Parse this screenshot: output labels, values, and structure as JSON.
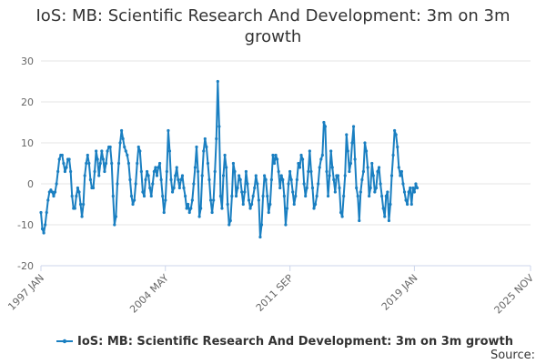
{
  "chart_data": {
    "type": "line",
    "title": "IoS: MB: Scientific Research And Development: 3m on 3m growth",
    "xlabel": "",
    "ylabel": "",
    "ylim": [
      -20,
      30
    ],
    "yticks": [
      30,
      20,
      10,
      0,
      -10,
      -20
    ],
    "xlim": [
      1997.0,
      2025.84
    ],
    "xticks": [
      {
        "label": "1997 JAN",
        "value": 1997.0
      },
      {
        "label": "2004 MAY",
        "value": 2004.33
      },
      {
        "label": "2011 SEP",
        "value": 2011.67
      },
      {
        "label": "2019 JAN",
        "value": 2019.0
      },
      {
        "label": "2025 NOV",
        "value": 2025.84
      }
    ],
    "grid": true,
    "legend": "bottom-center",
    "color": "#1a7fc1",
    "series": [
      {
        "name": "IoS: MB: Scientific Research And Development: 3m on 3m growth",
        "x_start": 1997.0,
        "step": 0.08333,
        "values": [
          -7,
          -11,
          -12,
          -10,
          -7,
          -4,
          -2,
          -1.5,
          -2,
          -3,
          -2,
          0,
          3,
          6,
          7,
          7,
          5,
          3,
          4,
          6,
          6,
          3,
          -3,
          -6,
          -6,
          -3,
          -1,
          -2,
          -5,
          -8,
          -5,
          2,
          5,
          7,
          5,
          1,
          -1,
          -1,
          3,
          8,
          6,
          2,
          5,
          8,
          6,
          3,
          5,
          8,
          9,
          9,
          5,
          -3,
          -10,
          -8,
          0,
          5,
          10,
          13,
          11,
          9,
          8,
          7,
          5,
          1,
          -3,
          -5,
          -4,
          0,
          5,
          9,
          8,
          3,
          -2,
          -3,
          1,
          3,
          2,
          -1,
          -3,
          0,
          3,
          4,
          2,
          4,
          5,
          1,
          -3,
          -7,
          -4,
          3,
          13,
          8,
          1,
          -2,
          -1,
          2,
          4,
          1,
          -1,
          1,
          2,
          -1,
          -3,
          -6,
          -5,
          -7,
          -6,
          -4,
          0,
          4,
          9,
          3,
          -8,
          -6,
          2,
          8,
          11,
          9,
          5,
          1,
          -4,
          -7,
          -4,
          3,
          11,
          25,
          14,
          -3,
          -6,
          2,
          7,
          4,
          -5,
          -10,
          -9,
          -3,
          5,
          3,
          -3,
          -1,
          2,
          1,
          -2,
          -5,
          -2,
          3,
          0,
          -4,
          -6,
          -5,
          -3,
          -1,
          2,
          0,
          -4,
          -13,
          -10,
          -3,
          2,
          1,
          -3,
          -7,
          -5,
          1,
          7,
          5,
          7,
          6,
          3,
          -1,
          2,
          1,
          -3,
          -10,
          -6,
          0,
          3,
          1,
          -2,
          -5,
          -3,
          1,
          5,
          4,
          7,
          6,
          0,
          -3,
          -1,
          3,
          8,
          3,
          -1,
          -6,
          -5,
          -3,
          0,
          4,
          6,
          7,
          15,
          14,
          3,
          -3,
          2,
          8,
          4,
          1,
          -2,
          2,
          2,
          -1,
          -7,
          -8,
          -3,
          2,
          12,
          8,
          3,
          5,
          10,
          14,
          6,
          -1,
          -3,
          -9,
          -2,
          1,
          3,
          10,
          8,
          4,
          -3,
          -1,
          5,
          2,
          -2,
          -1,
          3,
          4,
          0,
          -3,
          -6,
          -8,
          -3,
          -2,
          -9,
          -5,
          2,
          7,
          13,
          12,
          9,
          4,
          2,
          3,
          0,
          -2,
          -4,
          -5,
          -2,
          -1,
          -5,
          -1,
          -2,
          0,
          -1
        ]
      }
    ],
    "source_label": "Source:"
  }
}
